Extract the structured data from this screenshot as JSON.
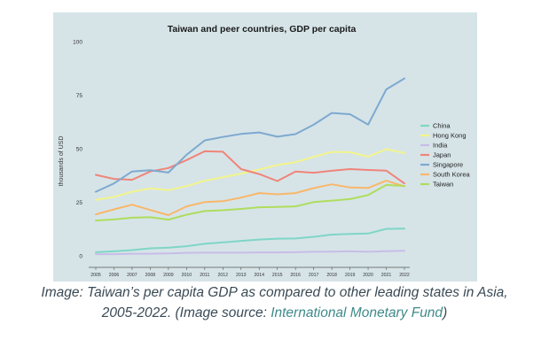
{
  "chart_data": {
    "type": "line",
    "title": "Taiwan and peer countries, GDP per capita",
    "ylabel": "thousands of USD",
    "xlabel": "",
    "ylim": [
      0,
      100
    ],
    "yticks": [
      0,
      25,
      50,
      75,
      100
    ],
    "x": [
      "2005",
      "2006",
      "2007",
      "2008",
      "2009",
      "2010",
      "2011",
      "2012",
      "2013",
      "2014",
      "2015",
      "2016",
      "2017",
      "2018",
      "2019",
      "2020",
      "2021",
      "2022"
    ],
    "grid": false,
    "legend_position": "right",
    "series": [
      {
        "name": "China",
        "color": "#7fd6c6",
        "values": [
          1.7,
          2.1,
          2.7,
          3.5,
          3.8,
          4.5,
          5.6,
          6.3,
          7.0,
          7.6,
          8.0,
          8.1,
          8.9,
          9.9,
          10.2,
          10.4,
          12.6,
          12.7
        ]
      },
      {
        "name": "Hong Kong",
        "color": "#f3f48a",
        "values": [
          26.1,
          27.5,
          29.9,
          31.5,
          30.7,
          32.5,
          35.1,
          36.7,
          38.4,
          40.3,
          42.4,
          43.7,
          46.2,
          48.5,
          48.4,
          46.3,
          49.8,
          48.0
        ]
      },
      {
        "name": "India",
        "color": "#c8bde6",
        "values": [
          0.8,
          0.8,
          1.0,
          1.0,
          1.1,
          1.4,
          1.5,
          1.5,
          1.5,
          1.6,
          1.6,
          1.7,
          1.9,
          2.0,
          2.1,
          1.9,
          2.2,
          2.4
        ]
      },
      {
        "name": "Japan",
        "color": "#f08479",
        "values": [
          37.8,
          35.9,
          35.5,
          39.4,
          41.0,
          44.7,
          48.8,
          48.6,
          40.5,
          38.2,
          34.9,
          39.4,
          38.8,
          39.7,
          40.5,
          40.1,
          39.8,
          33.8
        ]
      },
      {
        "name": "Singapore",
        "color": "#7ea9cf",
        "values": [
          29.9,
          33.8,
          39.4,
          40.0,
          38.9,
          47.2,
          53.9,
          55.5,
          56.9,
          57.6,
          55.6,
          56.8,
          61.2,
          66.7,
          66.1,
          61.3,
          77.7,
          82.8
        ]
      },
      {
        "name": "South Korea",
        "color": "#f9b76a",
        "values": [
          19.4,
          21.7,
          23.9,
          21.4,
          19.0,
          23.1,
          25.1,
          25.5,
          27.2,
          29.3,
          28.7,
          29.3,
          31.6,
          33.4,
          31.9,
          31.7,
          35.1,
          32.4
        ]
      },
      {
        "name": "Taiwan",
        "color": "#aedd5d",
        "values": [
          16.5,
          17.0,
          17.8,
          18.0,
          16.9,
          19.2,
          20.9,
          21.3,
          21.9,
          22.7,
          22.8,
          23.1,
          25.1,
          25.8,
          26.5,
          28.4,
          33.1,
          32.6
        ]
      }
    ]
  },
  "caption": {
    "line1": "Image: Taiwan’s per capita GDP as compared to other leading states in Asia,",
    "line2_prefix": "2005-2022. (Image source: ",
    "line2_link": "International Monetary Fund",
    "line2_suffix": ")"
  }
}
